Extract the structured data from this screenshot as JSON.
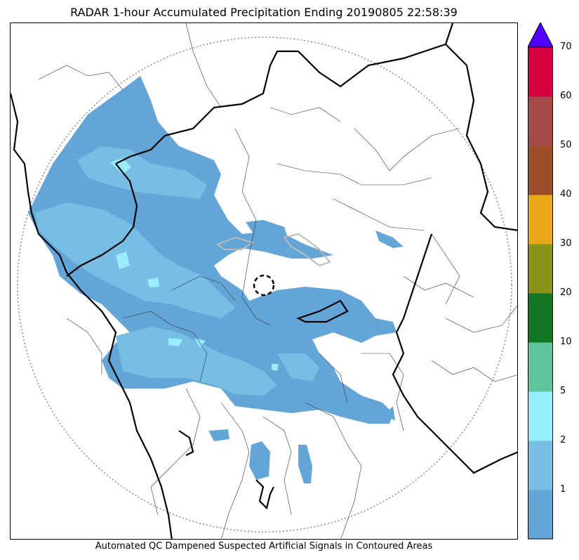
{
  "title": "RADAR 1-hour Accumulated Precipitation Ending 20190805 22:58:39",
  "footer": "Automated QC Dampened Suspected Artificial Signals in Contoured Areas",
  "colorbar": {
    "levels": [
      {
        "label": "1",
        "color": "#64a5d8"
      },
      {
        "label": "2",
        "color": "#78bee4"
      },
      {
        "label": "5",
        "color": "#97edfc"
      },
      {
        "label": "10",
        "color": "#5ec49b"
      },
      {
        "label": "20",
        "color": "#117521"
      },
      {
        "label": "30",
        "color": "#8a9418"
      },
      {
        "label": "40",
        "color": "#e8a81a"
      },
      {
        "label": "50",
        "color": "#9c4d2a"
      },
      {
        "label": "60",
        "color": "#a44a48"
      },
      {
        "label": "70",
        "color": "#d4003f"
      }
    ],
    "extend_color": "#5000ff"
  },
  "legend_colors": {
    "light": "#64a5d8",
    "medium": "#78bee4",
    "heavy": "#97edfc",
    "qc_contour": "#bbbbbb"
  }
}
